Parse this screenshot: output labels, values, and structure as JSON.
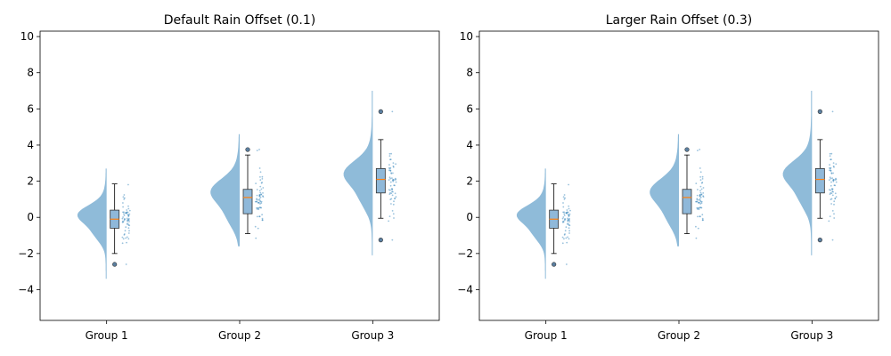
{
  "chart_data": [
    {
      "type": "raincloud",
      "title": "Default Rain Offset (0.1)",
      "rain_offset": 0.1,
      "categories": [
        "Group 1",
        "Group 2",
        "Group 3"
      ],
      "ylim": [
        -5.7,
        10.3
      ],
      "yticks": [
        -4,
        -2,
        0,
        2,
        4,
        6,
        8,
        10
      ],
      "grid": false,
      "series": [
        {
          "stats": {
            "whisker_low": -2.0,
            "q1": -0.6,
            "median": -0.1,
            "q3": 0.4,
            "whisker_high": 1.85,
            "outliers": [
              -2.6
            ]
          },
          "cloud_range": [
            -3.4,
            2.7
          ]
        },
        {
          "stats": {
            "whisker_low": -0.9,
            "q1": 0.2,
            "median": 1.1,
            "q3": 1.55,
            "whisker_high": 3.45,
            "outliers": [
              3.75
            ]
          },
          "cloud_range": [
            -1.6,
            4.6
          ]
        },
        {
          "stats": {
            "whisker_low": -0.05,
            "q1": 1.35,
            "median": 2.1,
            "q3": 2.7,
            "whisker_high": 4.3,
            "outliers": [
              5.85,
              -1.25
            ]
          },
          "cloud_range": [
            -2.1,
            7.0
          ]
        }
      ]
    },
    {
      "type": "raincloud",
      "title": "Larger Rain Offset (0.3)",
      "rain_offset": 0.3,
      "categories": [
        "Group 1",
        "Group 2",
        "Group 3"
      ],
      "ylim": [
        -5.7,
        10.3
      ],
      "yticks": [
        -4,
        -2,
        0,
        2,
        4,
        6,
        8,
        10
      ],
      "grid": false,
      "series": [
        {
          "stats": {
            "whisker_low": -2.0,
            "q1": -0.6,
            "median": -0.1,
            "q3": 0.4,
            "whisker_high": 1.85,
            "outliers": [
              -2.6
            ]
          },
          "cloud_range": [
            -3.4,
            2.7
          ]
        },
        {
          "stats": {
            "whisker_low": -0.9,
            "q1": 0.2,
            "median": 1.1,
            "q3": 1.55,
            "whisker_high": 3.45,
            "outliers": [
              3.75
            ]
          },
          "cloud_range": [
            -1.6,
            4.6
          ]
        },
        {
          "stats": {
            "whisker_low": -0.05,
            "q1": 1.35,
            "median": 2.1,
            "q3": 2.7,
            "whisker_high": 4.3,
            "outliers": [
              5.85,
              -1.25
            ]
          },
          "cloud_range": [
            -2.1,
            7.0
          ]
        }
      ]
    }
  ],
  "colors": {
    "cloud": "#1f77b4",
    "box_fill": "#8fb8d9",
    "median": "#ff7f0e",
    "rain": "#1f77b4",
    "outlier": "#5b7fa0",
    "axes": "#000000"
  }
}
